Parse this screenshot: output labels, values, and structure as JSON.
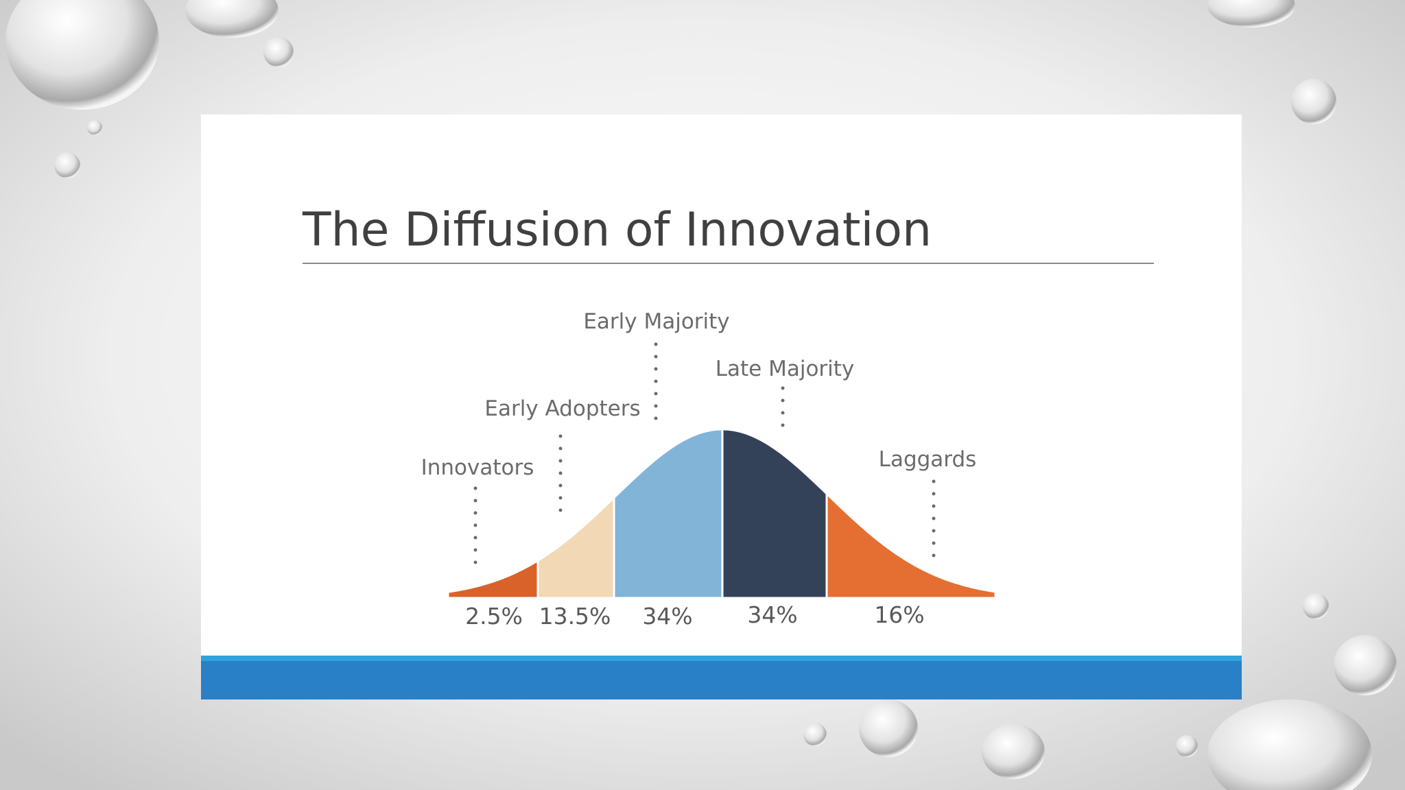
{
  "title": "The Diffusion of Innovation",
  "segments": [
    {
      "label": "Innovators",
      "percent": "2.5%"
    },
    {
      "label": "Early Adopters",
      "percent": "13.5%"
    },
    {
      "label": "Early Majority",
      "percent": "34%"
    },
    {
      "label": "Late Majority",
      "percent": "34%"
    },
    {
      "label": "Laggards",
      "percent": "16%"
    }
  ]
}
